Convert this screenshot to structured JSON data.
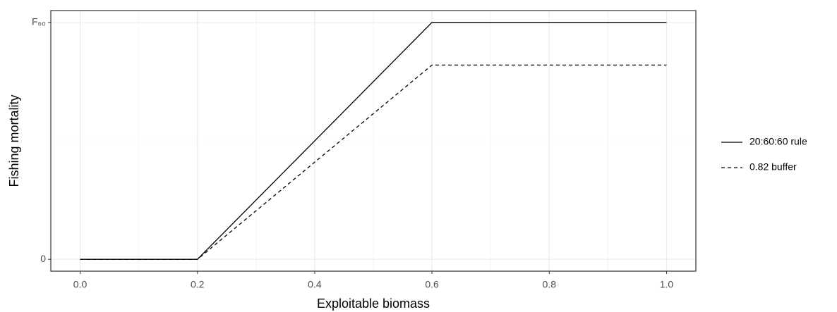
{
  "chart_data": {
    "type": "line",
    "x_label": "Exploitable biomass",
    "y_label": "Fishing mortality",
    "xlim": [
      -0.05,
      1.05
    ],
    "ylim": [
      -0.05,
      1.05
    ],
    "xticks": [
      {
        "value": 0,
        "label": "0.0"
      },
      0.2,
      0.4,
      0.6,
      0.8,
      {
        "value": 1,
        "label": "1.0"
      }
    ],
    "yticks": [
      0,
      {
        "value": 1,
        "label": "F₆₀"
      }
    ],
    "x_minor_ticks": [
      0.1,
      0.3,
      0.5,
      0.7,
      0.9
    ],
    "y_minor_ticks": [
      0.5
    ],
    "grid": true,
    "legend": "right",
    "x": [
      0,
      0.2,
      0.6,
      1
    ],
    "series": [
      {
        "name": "20:60:60 rule",
        "color": "#000000",
        "dash": "solid",
        "values": [
          0,
          0,
          1,
          1
        ]
      },
      {
        "name": "0.82 buffer",
        "color": "#000000",
        "dash": "dashed",
        "values": [
          0,
          0,
          0.82,
          0.82
        ]
      }
    ]
  }
}
